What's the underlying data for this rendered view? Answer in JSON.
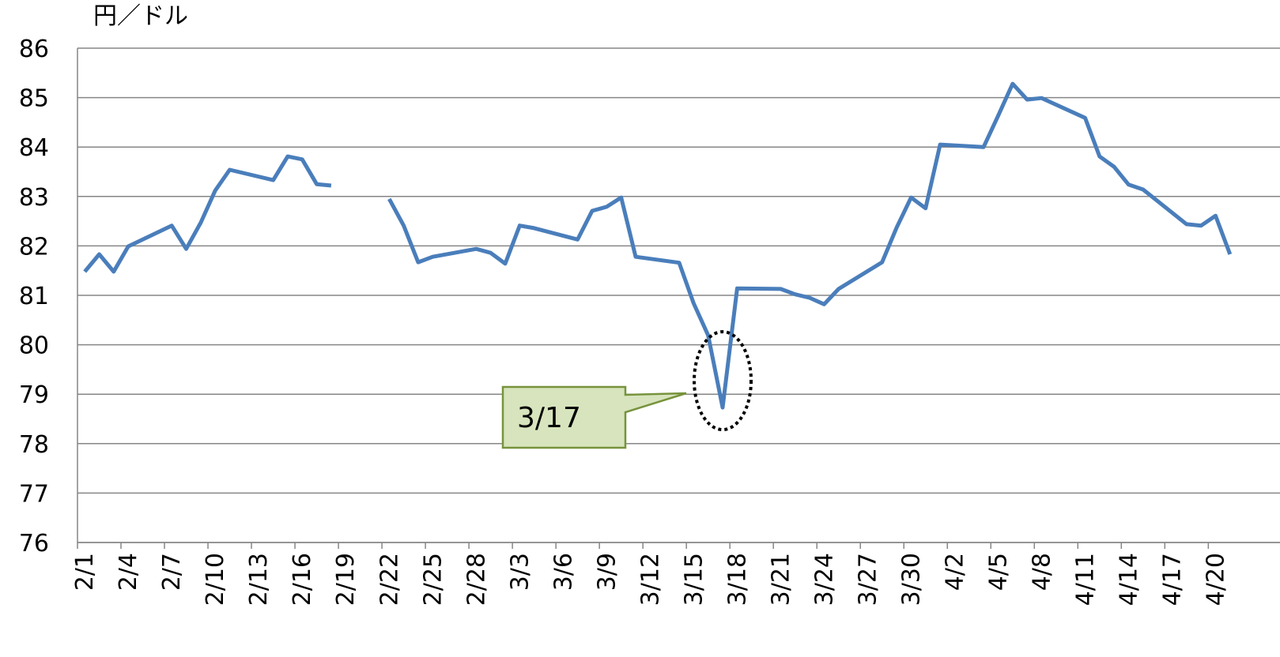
{
  "chart_data": {
    "type": "line",
    "ylabel": "円／ドル",
    "x": [
      "2/1",
      "2/2",
      "2/3",
      "2/4",
      "2/7",
      "2/8",
      "2/9",
      "2/10",
      "2/11",
      "2/14",
      "2/15",
      "2/16",
      "2/17",
      "2/18",
      "2/21",
      "2/22",
      "2/23",
      "2/24",
      "2/25",
      "2/28",
      "3/1",
      "3/2",
      "3/3",
      "3/4",
      "3/7",
      "3/8",
      "3/9",
      "3/10",
      "3/11",
      "3/14",
      "3/15",
      "3/16",
      "3/17",
      "3/18",
      "3/21",
      "3/22",
      "3/23",
      "3/24",
      "3/25",
      "3/28",
      "3/29",
      "3/30",
      "3/31",
      "4/1",
      "4/4",
      "4/5",
      "4/6",
      "4/7",
      "4/8",
      "4/11",
      "4/12",
      "4/13",
      "4/14",
      "4/15",
      "4/18",
      "4/19",
      "4/20",
      "4/21"
    ],
    "series": [
      {
        "name": "円／ドル",
        "color": "#4a7ebb",
        "values": [
          81.48,
          81.83,
          81.48,
          81.99,
          82.41,
          81.94,
          82.47,
          83.12,
          83.54,
          83.33,
          83.81,
          83.75,
          83.25,
          83.22,
          null,
          82.95,
          82.41,
          81.67,
          81.78,
          81.94,
          81.86,
          81.64,
          82.41,
          82.36,
          82.13,
          82.71,
          82.79,
          82.98,
          81.78,
          81.66,
          80.84,
          80.19,
          78.73,
          81.14,
          81.13,
          81.02,
          80.95,
          80.82,
          81.13,
          81.67,
          82.37,
          82.98,
          82.76,
          84.05,
          84.0,
          84.63,
          85.28,
          84.96,
          84.99,
          84.59,
          83.81,
          83.6,
          83.24,
          83.14,
          82.44,
          82.41,
          82.61,
          81.83
        ]
      }
    ],
    "xlim": [
      "2/1",
      "4/22"
    ],
    "xticks": [
      "2/1",
      "2/4",
      "2/7",
      "2/10",
      "2/13",
      "2/16",
      "2/19",
      "2/22",
      "2/25",
      "2/28",
      "3/3",
      "3/6",
      "3/9",
      "3/12",
      "3/15",
      "3/18",
      "3/21",
      "3/24",
      "3/27",
      "3/30",
      "4/2",
      "4/5",
      "4/8",
      "4/11",
      "4/14",
      "4/17",
      "4/20"
    ],
    "ylim": [
      76,
      86
    ],
    "yticks": [
      76,
      77,
      78,
      79,
      80,
      81,
      82,
      83,
      84,
      85,
      86
    ],
    "grid": true,
    "annotation": {
      "text": "3/17",
      "x": "3/17"
    }
  }
}
